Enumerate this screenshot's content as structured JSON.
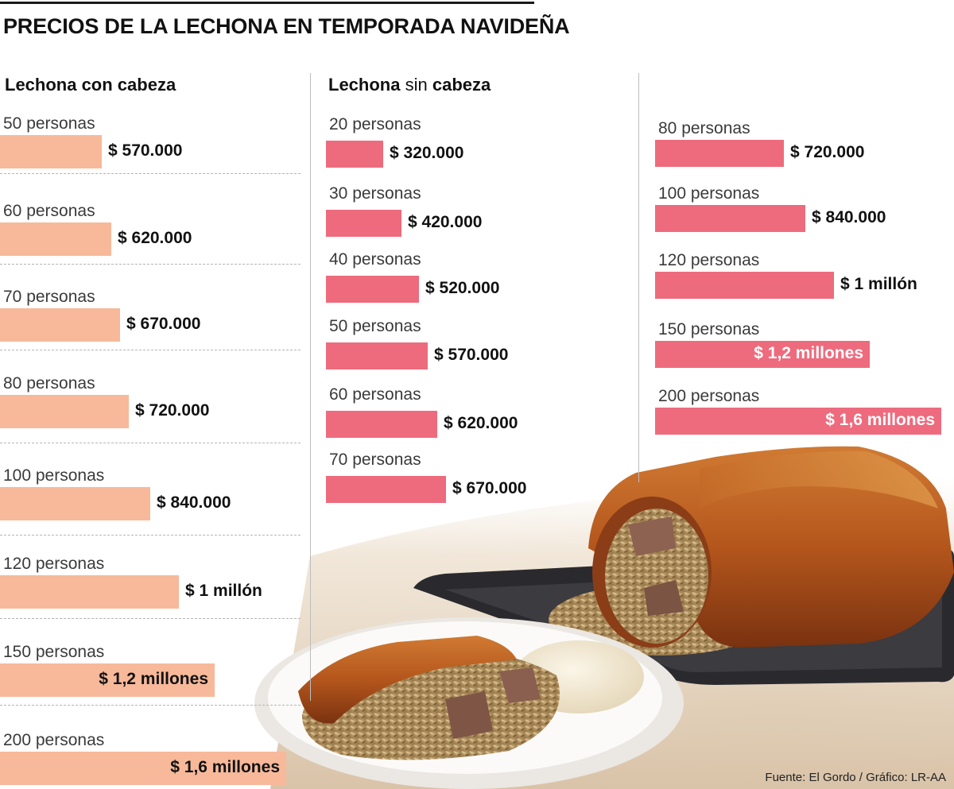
{
  "title": "PRECIOS DE LA LECHONA EN TEMPORADA NAVIDEÑA",
  "source": "Fuente: El Gordo / Gráfico: LR-AA",
  "colors": {
    "con_cabeza": "#f7b99a",
    "sin_cabeza": "#ed6b7d",
    "title_rule": "#1a1a1a"
  },
  "chart_data": [
    {
      "type": "bar",
      "orientation": "horizontal",
      "title_bold": "Lechona con cabeza",
      "title_light": "",
      "unit": "pesos colombianos",
      "categories": [
        "50 personas",
        "60 personas",
        "70 personas",
        "80 personas",
        "100 personas",
        "120 personas",
        "150 personas",
        "200 personas"
      ],
      "values": [
        570000,
        620000,
        670000,
        720000,
        840000,
        1000000,
        1200000,
        1600000
      ],
      "value_labels": [
        "$ 570.000",
        "$ 620.000",
        "$ 670.000",
        "$ 720.000",
        "$ 840.000",
        "$ 1 millón",
        "$ 1,2 millones",
        "$ 1,6 millones"
      ]
    },
    {
      "type": "bar",
      "orientation": "horizontal",
      "title_bold": "Lechona",
      "title_light": "sin",
      "title_bold2": "cabeza",
      "unit": "pesos colombianos",
      "categories": [
        "20 personas",
        "30 personas",
        "40 personas",
        "50 personas",
        "60 personas",
        "70 personas",
        "80 personas",
        "100 personas",
        "120 personas",
        "150 personas",
        "200 personas"
      ],
      "values": [
        320000,
        420000,
        520000,
        570000,
        620000,
        670000,
        720000,
        840000,
        1000000,
        1200000,
        1600000
      ],
      "value_labels": [
        "$ 320.000",
        "$ 420.000",
        "$ 520.000",
        "$ 570.000",
        "$ 620.000",
        "$ 670.000",
        "$ 720.000",
        "$ 840.000",
        "$ 1 millón",
        "$ 1,2 millones",
        "$ 1,6 millones"
      ]
    }
  ]
}
